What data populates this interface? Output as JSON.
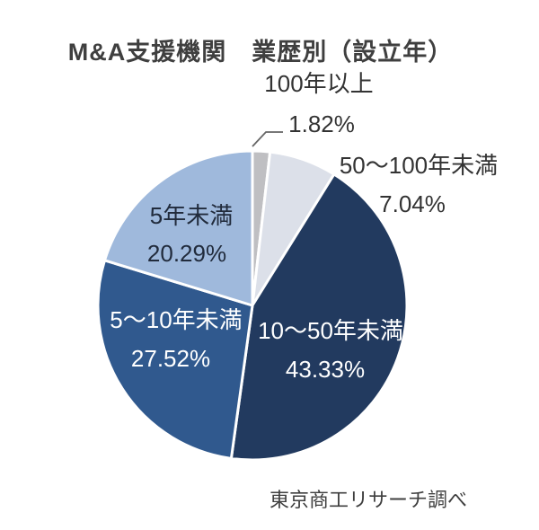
{
  "chart_data": {
    "type": "pie",
    "title": "M&A支援機関　業歴別（設立年）",
    "unit": "%",
    "start_angle_deg": 0,
    "direction": "clockwise",
    "slices": [
      {
        "name": "100年以上",
        "value": 1.82,
        "label": "1.82%",
        "color": "#BFBFC2",
        "label_position": "outside"
      },
      {
        "name": "50～100年未満",
        "value": 7.04,
        "label": "7.04%",
        "color": "#DCE0E9",
        "label_position": "outside"
      },
      {
        "name": "10～50年未満",
        "value": 43.33,
        "label": "43.33%",
        "color": "#223A5F",
        "label_position": "inside"
      },
      {
        "name": "5～10年未満",
        "value": 27.52,
        "label": "27.52%",
        "color": "#30598E",
        "label_position": "inside"
      },
      {
        "name": "5年未満",
        "value": 20.29,
        "label": "20.29%",
        "color": "#9FB9DC",
        "label_position": "inside"
      }
    ],
    "legend": "none",
    "source_note": "東京商工リサーチ調べ",
    "leader_line_color": "#666666",
    "slice_border_color": "#FFFFFF"
  }
}
